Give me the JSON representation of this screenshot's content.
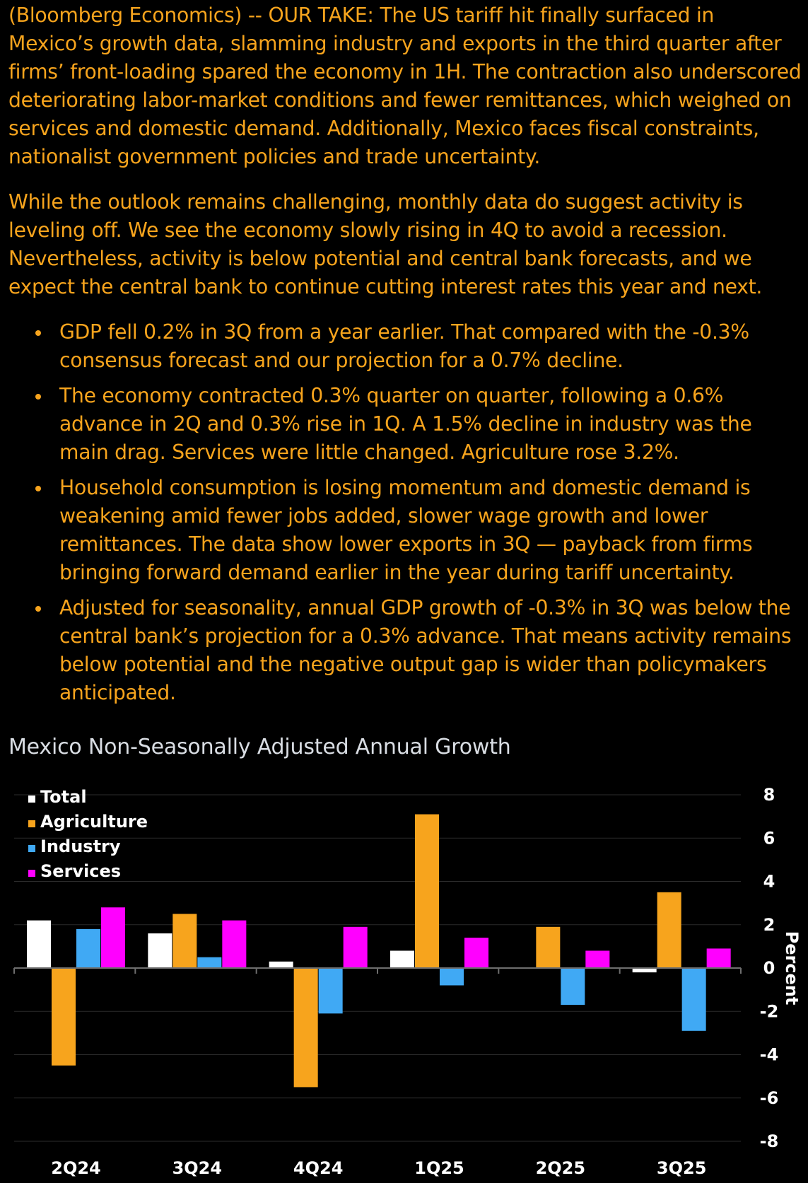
{
  "article": {
    "paragraphs": [
      "(Bloomberg Economics) -- OUR TAKE: The US tariff hit finally surfaced in Mexico’s growth data, slamming industry and exports in the third quarter after firms’ front-loading spared the economy in 1H. The contraction also underscored deteriorating labor-market conditions and fewer remittances, which weighed on services and domestic demand. Additionally, Mexico faces fiscal constraints, nationalist government policies and trade uncertainty.",
      "While the outlook remains challenging, monthly data do suggest activity is leveling off. We see the economy slowly rising in 4Q to avoid a recession. Nevertheless, activity is below potential and central bank forecasts, and we expect the central bank to continue cutting interest rates this year and next."
    ],
    "bullets": [
      "GDP fell 0.2% in 3Q from a year earlier. That compared with the -0.3% consensus forecast and our projection for a 0.7% decline.",
      "The economy contracted 0.3% quarter on quarter, following a 0.6% advance in 2Q and 0.3% rise in 1Q. A 1.5% decline in industry was the main drag. Services were little changed. Agriculture rose 3.2%.",
      "Household consumption is losing momentum and domestic demand is weakening amid fewer jobs added, slower wage growth and lower remittances. The data show lower exports in 3Q — payback from firms bringing forward demand earlier in the year during tariff uncertainty.",
      "Adjusted for seasonality, annual GDP growth of -0.3% in 3Q was below the central bank’s projection for a 0.3% advance. That means activity remains below potential and the negative output gap is wider than policymakers anticipated."
    ]
  },
  "chart_data": {
    "type": "bar",
    "title": "Mexico Non-Seasonally Adjusted Annual Growth",
    "xlabel": "",
    "ylabel": "Percent",
    "ylim": [
      -8,
      8
    ],
    "yticks": [
      8,
      6,
      4,
      2,
      0,
      -2,
      -4,
      -6,
      -8
    ],
    "grid": true,
    "legend_position": "top-left",
    "categories": [
      "2Q24",
      "3Q24",
      "4Q24",
      "1Q25",
      "2Q25",
      "3Q25"
    ],
    "series": [
      {
        "name": "Total",
        "color": "#ffffff",
        "values": [
          2.2,
          1.6,
          0.3,
          0.8,
          0.0,
          -0.2
        ]
      },
      {
        "name": "Agriculture",
        "color": "#f7a41d",
        "values": [
          -4.5,
          2.5,
          -5.5,
          7.1,
          1.9,
          3.5
        ]
      },
      {
        "name": "Industry",
        "color": "#40a9f4",
        "values": [
          1.8,
          0.5,
          -2.1,
          -0.8,
          -1.7,
          -2.9
        ]
      },
      {
        "name": "Services",
        "color": "#ff00ff",
        "values": [
          2.8,
          2.2,
          1.9,
          1.4,
          0.8,
          0.9
        ]
      }
    ],
    "colors": {
      "background": "#000000",
      "text": "#ffffff",
      "title": "#d9dde3",
      "gridline": "#2b2b2b",
      "axis": "#6e6e6e"
    }
  }
}
